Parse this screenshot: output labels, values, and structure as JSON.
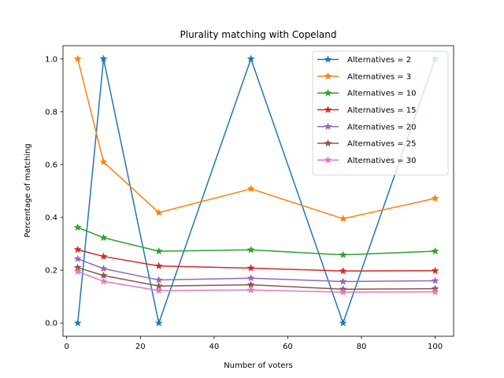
{
  "chart_data": {
    "type": "line",
    "title": "Plurality matching with Copeland",
    "xlabel": "Number of voters",
    "ylabel": "Percentage of matching",
    "x": [
      3,
      10,
      25,
      50,
      75,
      100
    ],
    "xlim": [
      -1,
      105
    ],
    "ylim": [
      -0.05,
      1.05
    ],
    "xticks": [
      0,
      20,
      40,
      60,
      80,
      100
    ],
    "yticks": [
      0.0,
      0.2,
      0.4,
      0.6,
      0.8,
      1.0
    ],
    "xtick_labels": [
      "0",
      "20",
      "40",
      "60",
      "80",
      "100"
    ],
    "ytick_labels": [
      "0.0",
      "0.2",
      "0.4",
      "0.6",
      "0.8",
      "1.0"
    ],
    "grid": false,
    "legend_position": "top-right",
    "marker": "star",
    "series": [
      {
        "name": "Alternatives = 2",
        "color": "#1f77b4",
        "values": [
          0.0,
          1.0,
          0.0,
          1.0,
          0.0,
          1.0
        ]
      },
      {
        "name": "Alternatives = 3",
        "color": "#ff7f0e",
        "values": [
          1.0,
          0.61,
          0.418,
          0.508,
          0.395,
          0.472
        ]
      },
      {
        "name": "Alternatives = 10",
        "color": "#2ca02c",
        "values": [
          0.362,
          0.323,
          0.272,
          0.277,
          0.258,
          0.272
        ]
      },
      {
        "name": "Alternatives = 15",
        "color": "#d62728",
        "values": [
          0.278,
          0.252,
          0.216,
          0.208,
          0.197,
          0.198
        ]
      },
      {
        "name": "Alternatives = 20",
        "color": "#9467bd",
        "values": [
          0.243,
          0.206,
          0.163,
          0.17,
          0.157,
          0.16
        ]
      },
      {
        "name": "Alternatives = 25",
        "color": "#8c564b",
        "values": [
          0.21,
          0.18,
          0.14,
          0.145,
          0.128,
          0.13
        ]
      },
      {
        "name": "Alternatives = 30",
        "color": "#e377c2",
        "values": [
          0.195,
          0.158,
          0.123,
          0.125,
          0.117,
          0.118
        ]
      }
    ]
  }
}
